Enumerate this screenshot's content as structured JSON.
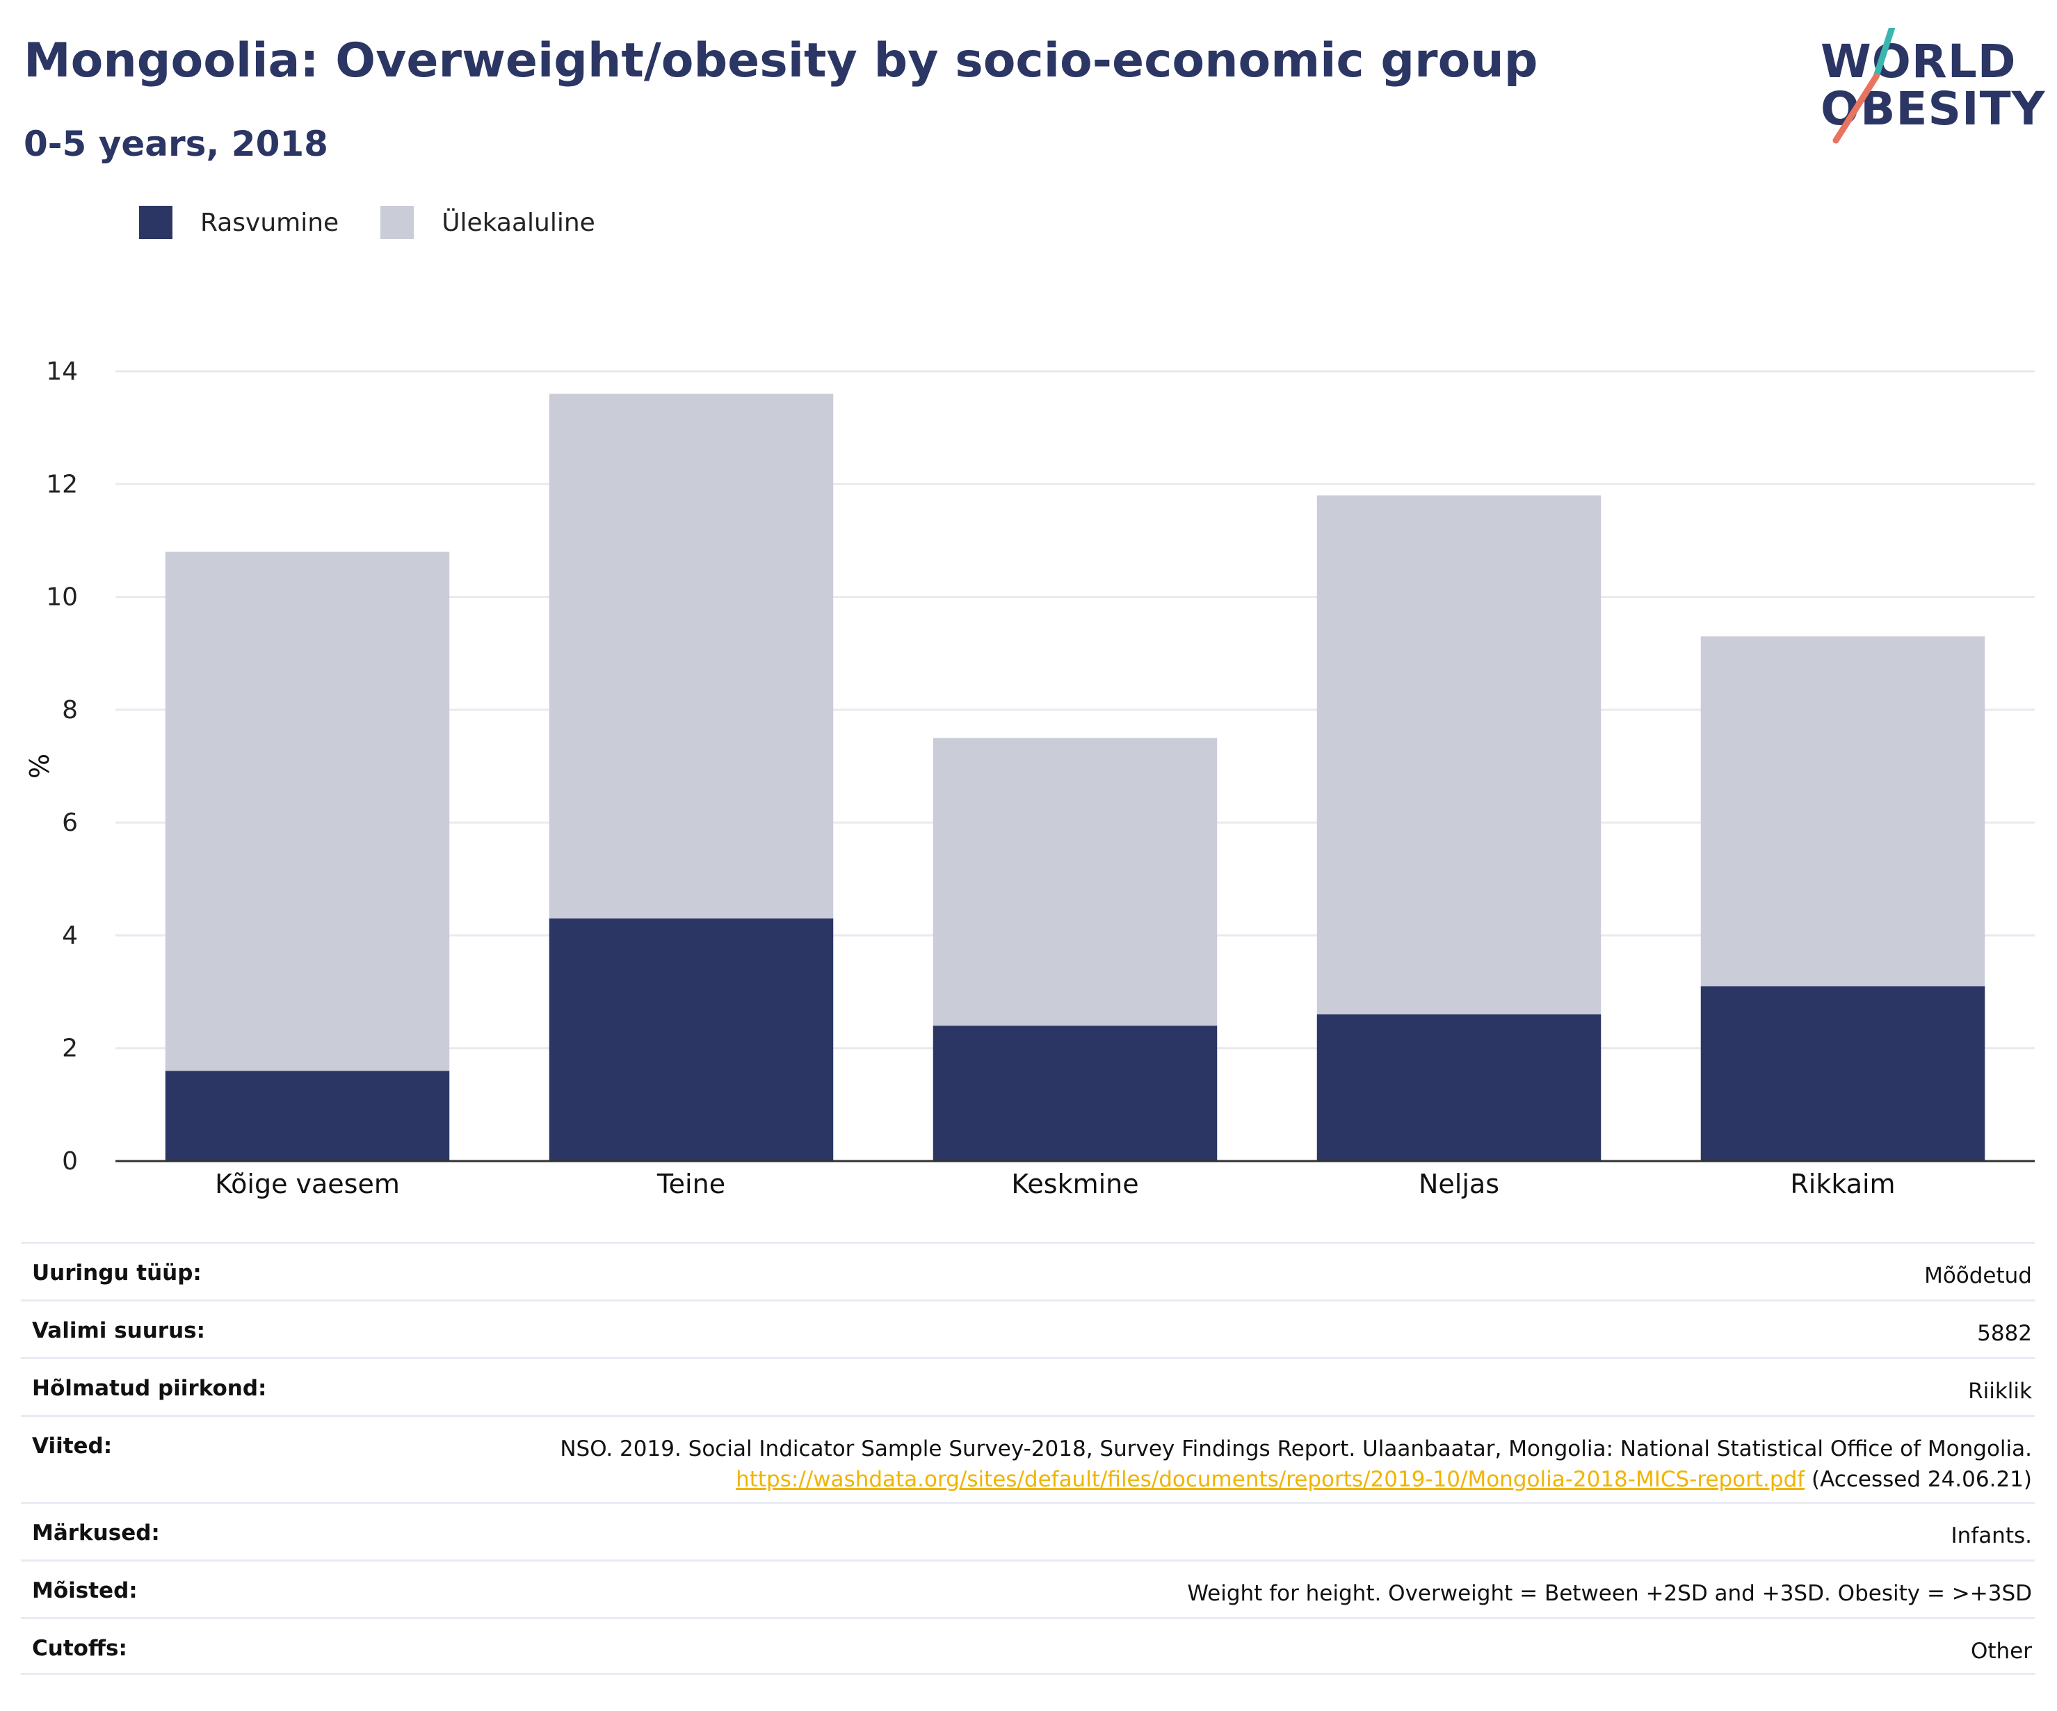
{
  "header": {
    "title": "Mongoolia: Overweight/obesity by socio-economic group",
    "subtitle": "0-5 years, 2018",
    "logo_line1": "WORLD",
    "logo_line2": "OBESITY"
  },
  "colors": {
    "obesity": "#2b3664",
    "overweight": "#cacdd8",
    "accent_teal": "#3ab5b0",
    "accent_coral": "#e8735e",
    "link": "#f0b400"
  },
  "chart_data": {
    "type": "bar",
    "stacked": true,
    "categories": [
      "Kõige vaesem",
      "Teine",
      "Keskmine",
      "Neljas",
      "Rikkaim"
    ],
    "series": [
      {
        "name": "Rasvumine",
        "values": [
          1.6,
          4.3,
          2.4,
          2.6,
          3.1
        ]
      },
      {
        "name": "Ülekaaluline",
        "values": [
          9.2,
          9.3,
          5.1,
          9.2,
          6.2
        ]
      }
    ],
    "ylabel": "%",
    "xlabel": "",
    "ylim": [
      0,
      14
    ],
    "yticks": [
      0,
      2,
      4,
      6,
      8,
      10,
      12,
      14
    ],
    "grid": true,
    "legend_position": "top-left"
  },
  "info": {
    "rows": [
      {
        "label": "Uuringu tüüp:",
        "value": "Mõõdetud"
      },
      {
        "label": "Valimi suurus:",
        "value": "5882"
      },
      {
        "label": "Hõlmatud piirkond:",
        "value": "Riiklik"
      },
      {
        "label": "Viited:",
        "value_pre": "NSO. 2019. Social Indicator Sample Survey-2018, Survey Findings Report. Ulaanbaatar, Mongolia: National Statistical Office of Mongolia. ",
        "link": "https://washdata.org/sites/default/files/documents/reports/2019-10/Mongolia-2018-MICS-report.pdf",
        "value_post": " (Accessed 24.06.21)"
      },
      {
        "label": "Märkused:",
        "value": "Infants."
      },
      {
        "label": "Mõisted:",
        "value": "Weight for height. Overweight = Between +2SD and +3SD. Obesity = >+3SD"
      },
      {
        "label": "Cutoffs:",
        "value": "Other"
      }
    ]
  }
}
